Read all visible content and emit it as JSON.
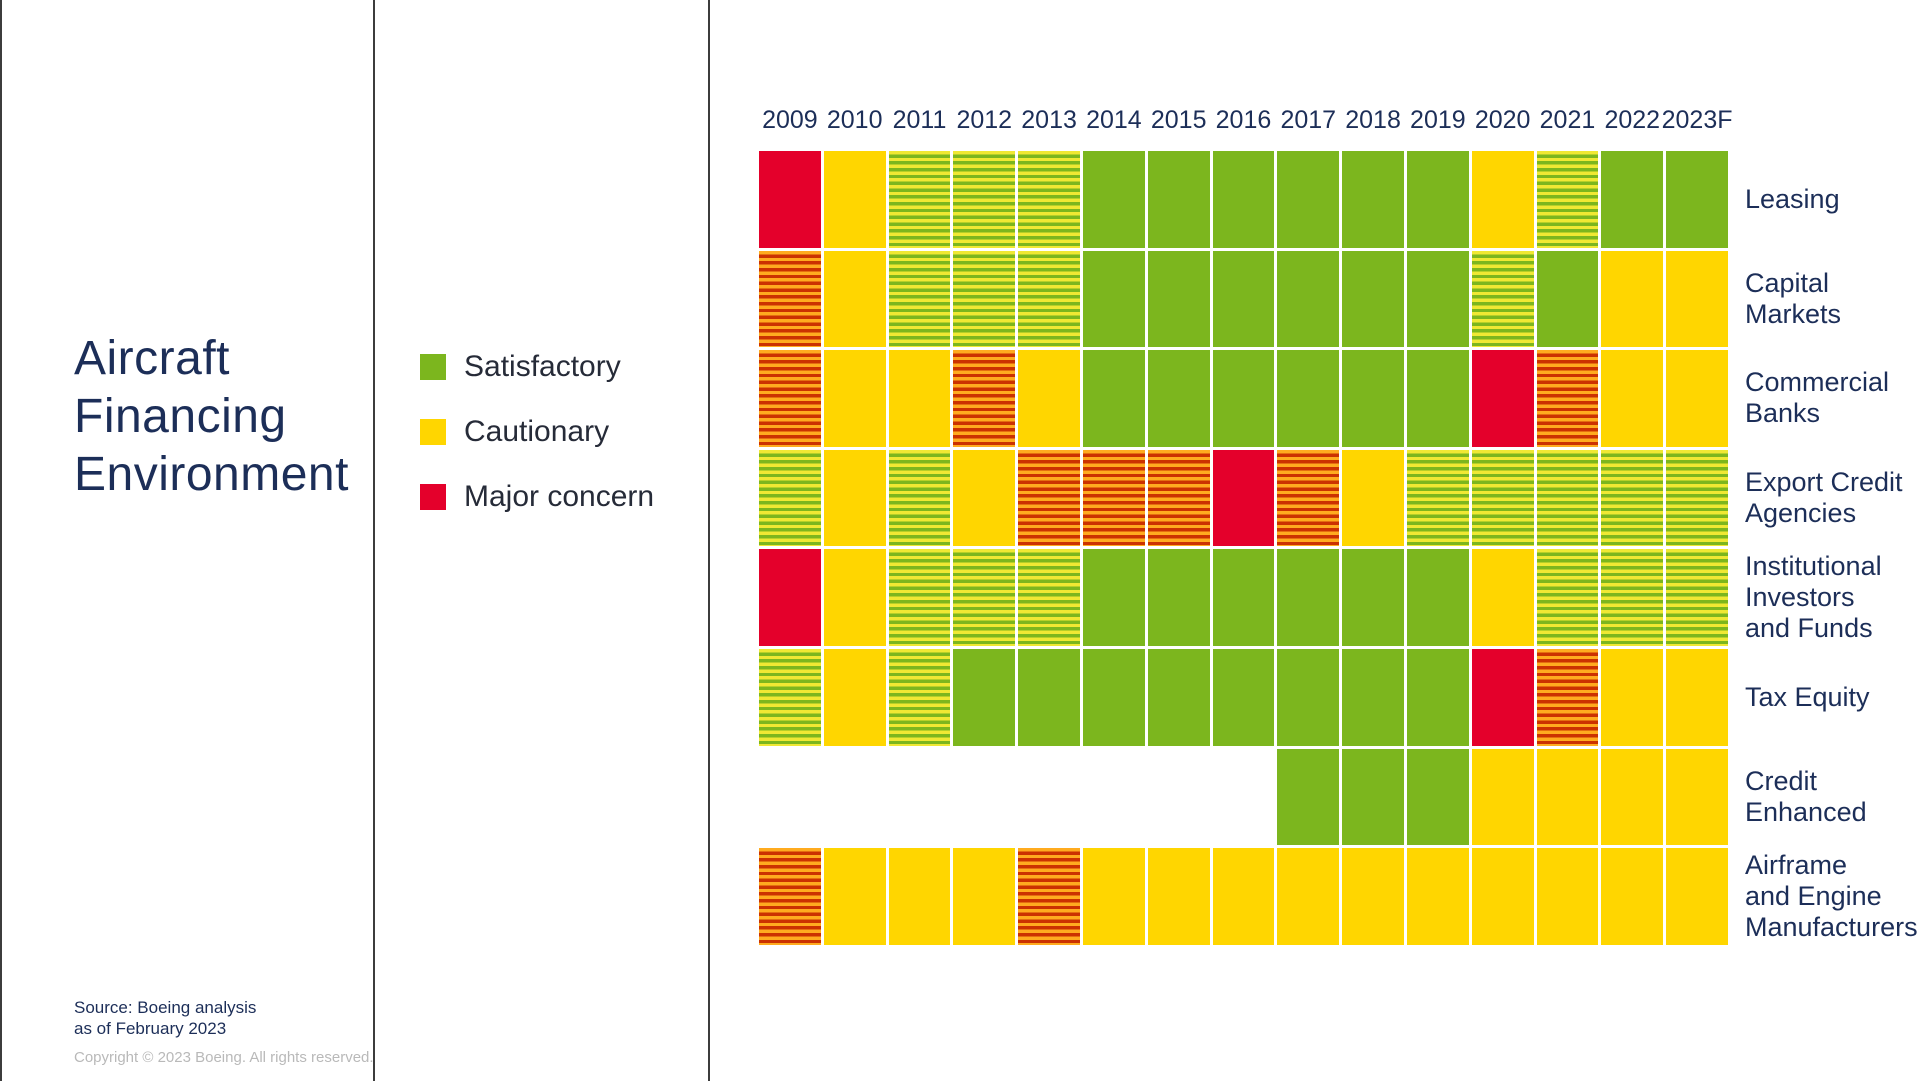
{
  "slide": {
    "title": "Aircraft\nFinancing\nEnvironment",
    "source_line1": "Source: Boeing analysis",
    "source_line2": "as of February 2023",
    "copyright": "Copyright © 2023 Boeing. All rights reserved."
  },
  "legend": {
    "items": [
      {
        "label": "Satisfactory",
        "color": "#7cb61e"
      },
      {
        "label": "Cautionary",
        "color": "#ffd600"
      },
      {
        "label": "Major concern",
        "color": "#e4002b"
      }
    ]
  },
  "colors": {
    "satisfactory_green": "#7cb61e",
    "cautionary_yellow": "#ffd600",
    "major_concern_red": "#e4002b",
    "stripe_yellow_green_light": "#f0e833",
    "stripe_red_dark": "#cb3201",
    "stripe_orange_light": "#ffab1f",
    "text_navy": "#1c2e58",
    "copyright_gray": "#b9b9b9",
    "divider_gray": "#3c3c3c"
  },
  "chart_data": {
    "type": "heatmap",
    "title": "Aircraft Financing Environment",
    "columns": [
      "2009",
      "2010",
      "2011",
      "2012",
      "2013",
      "2014",
      "2015",
      "2016",
      "2017",
      "2018",
      "2019",
      "2020",
      "2021",
      "2022",
      "2023F"
    ],
    "cell_codes": {
      "G": "Satisfactory",
      "Y": "Cautionary",
      "R": "Major concern",
      "GY": "Satisfactory/Cautionary striped (transition)",
      "RY": "Major concern/Cautionary striped (transition)",
      "-": "no data"
    },
    "legend_position": "left",
    "rows": [
      {
        "label": "Leasing",
        "values": [
          "R",
          "Y",
          "GY",
          "GY",
          "GY",
          "G",
          "G",
          "G",
          "G",
          "G",
          "G",
          "Y",
          "GY",
          "G",
          "G"
        ]
      },
      {
        "label": "Capital\nMarkets",
        "values": [
          "RY",
          "Y",
          "GY",
          "GY",
          "GY",
          "G",
          "G",
          "G",
          "G",
          "G",
          "G",
          "GY",
          "G",
          "Y",
          "Y"
        ]
      },
      {
        "label": "Commercial\nBanks",
        "values": [
          "RY",
          "Y",
          "Y",
          "RY",
          "Y",
          "G",
          "G",
          "G",
          "G",
          "G",
          "G",
          "R",
          "RY",
          "Y",
          "Y"
        ]
      },
      {
        "label": "Export Credit\nAgencies",
        "values": [
          "GY",
          "Y",
          "GY",
          "Y",
          "RY",
          "RY",
          "RY",
          "R",
          "RY",
          "Y",
          "GY",
          "GY",
          "GY",
          "GY",
          "GY"
        ]
      },
      {
        "label": "Institutional\nInvestors\nand Funds",
        "values": [
          "R",
          "Y",
          "GY",
          "GY",
          "GY",
          "G",
          "G",
          "G",
          "G",
          "G",
          "G",
          "Y",
          "GY",
          "GY",
          "GY"
        ]
      },
      {
        "label": "Tax Equity",
        "values": [
          "GY",
          "Y",
          "GY",
          "G",
          "G",
          "G",
          "G",
          "G",
          "G",
          "G",
          "G",
          "R",
          "RY",
          "Y",
          "Y"
        ]
      },
      {
        "label": "Credit\nEnhanced",
        "values": [
          "-",
          "-",
          "-",
          "-",
          "-",
          "-",
          "-",
          "-",
          "G",
          "G",
          "G",
          "Y",
          "Y",
          "Y",
          "Y"
        ]
      },
      {
        "label": "Airframe\nand Engine\nManufacturers",
        "values": [
          "RY",
          "Y",
          "Y",
          "Y",
          "RY",
          "Y",
          "Y",
          "Y",
          "Y",
          "Y",
          "Y",
          "Y",
          "Y",
          "Y",
          "Y"
        ]
      }
    ]
  }
}
